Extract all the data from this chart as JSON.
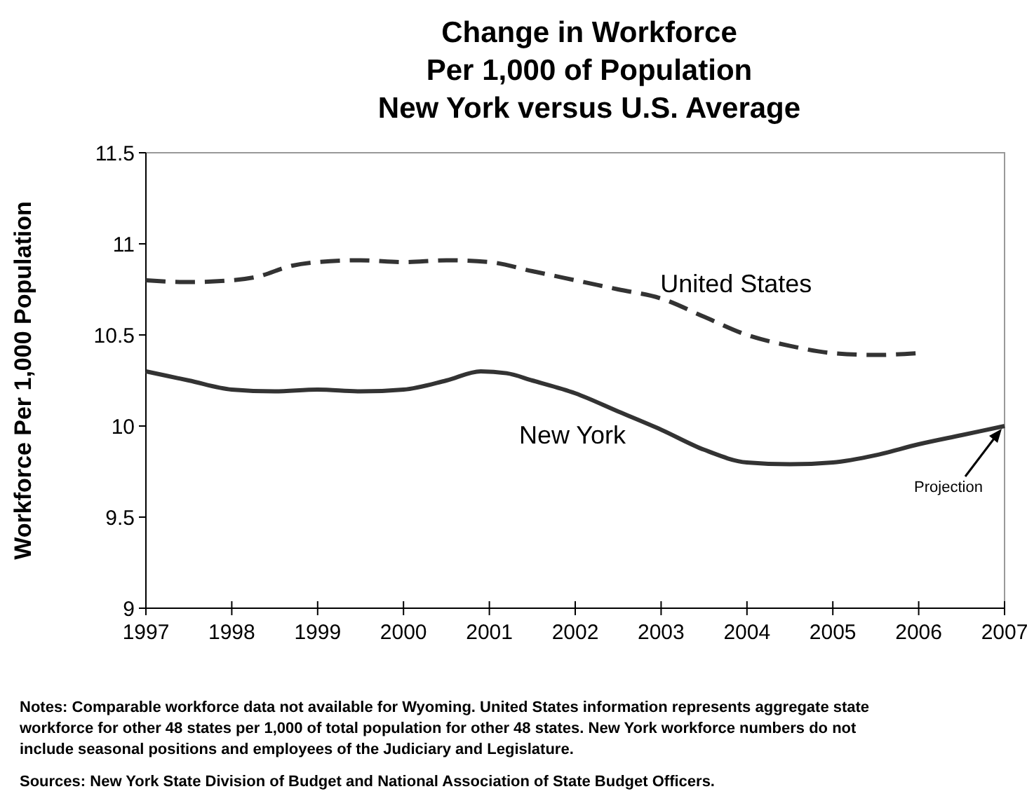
{
  "chart_data": {
    "type": "line",
    "title": "Change in Workforce\nPer 1,000 of Population\nNew York versus U.S. Average",
    "ylabel": "Workforce Per 1,000 Population",
    "xlim": [
      1997,
      2007
    ],
    "xticks": [
      1997,
      1998,
      1999,
      2000,
      2001,
      2002,
      2003,
      2004,
      2005,
      2006,
      2007
    ],
    "ylim": [
      9,
      11.5
    ],
    "yticks": [
      9,
      9.5,
      10,
      10.5,
      11,
      11.5
    ],
    "grid": false,
    "series": [
      {
        "name": "United States",
        "color": "#333333",
        "line_style": "dashed",
        "x": [
          1997,
          1997.5,
          1998,
          1998.3,
          1998.7,
          1999,
          1999.5,
          2000,
          2000.5,
          2001,
          2001.5,
          2002,
          2002.5,
          2003,
          2003.5,
          2004,
          2004.5,
          2005,
          2005.5,
          2006
        ],
        "values": [
          10.8,
          10.79,
          10.8,
          10.82,
          10.88,
          10.9,
          10.91,
          10.9,
          10.91,
          10.9,
          10.85,
          10.8,
          10.75,
          10.7,
          10.6,
          10.5,
          10.44,
          10.4,
          10.39,
          10.4
        ]
      },
      {
        "name": "New York",
        "color": "#333333",
        "line_style": "solid",
        "x": [
          1997,
          1997.5,
          1998,
          1998.5,
          1999,
          1999.5,
          2000,
          2000.5,
          2000.9,
          2001.2,
          2001.5,
          2002,
          2002.5,
          2003,
          2003.5,
          2004,
          2004.5,
          2005,
          2005.5,
          2006,
          2006.5,
          2007
        ],
        "values": [
          10.3,
          10.25,
          10.2,
          10.19,
          10.2,
          10.19,
          10.2,
          10.25,
          10.3,
          10.29,
          10.25,
          10.18,
          10.08,
          9.98,
          9.87,
          9.8,
          9.79,
          9.8,
          9.84,
          9.9,
          9.95,
          10
        ]
      }
    ],
    "annotations": [
      "Projection",
      "Notes:  Comparable workforce data not available for Wyoming.  United States information represents aggregate state workforce for other 48 states per 1,000 of total population for other 48 states. New York workforce numbers do not include seasonal positions and employees of the Judiciary and Legislature.",
      "Sources: New York State Division of Budget and National Association of State Budget Officers."
    ]
  }
}
